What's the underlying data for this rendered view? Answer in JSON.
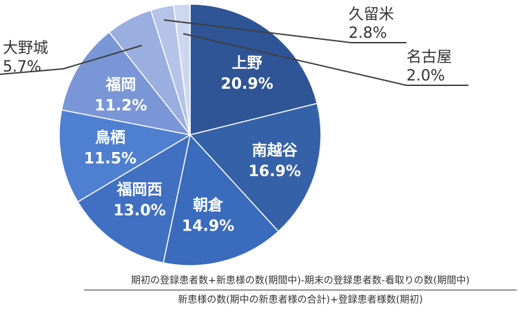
{
  "chart_data": {
    "type": "pie",
    "title": "",
    "start_angle_deg": 0,
    "direction": "clockwise",
    "slices": [
      {
        "name": "上野",
        "value": 20.9,
        "value_label": "20.9%",
        "color": "#2f5597",
        "label_position": "inside"
      },
      {
        "name": "南越谷",
        "value": 16.9,
        "value_label": "16.9%",
        "color": "#3561a8",
        "label_position": "inside"
      },
      {
        "name": "朝倉",
        "value": 14.9,
        "value_label": "14.9%",
        "color": "#3a6bbd",
        "label_position": "inside"
      },
      {
        "name": "福岡西",
        "value": 13.0,
        "value_label": "13.0%",
        "color": "#4170c2",
        "label_position": "inside"
      },
      {
        "name": "鳥栖",
        "value": 11.5,
        "value_label": "11.5%",
        "color": "#4f7fd0",
        "label_position": "inside"
      },
      {
        "name": "福岡",
        "value": 11.2,
        "value_label": "11.2%",
        "color": "#7a96d6",
        "label_position": "inside"
      },
      {
        "name": "大野城",
        "value": 5.7,
        "value_label": "5.7%",
        "color": "#9aaedf",
        "label_position": "outside"
      },
      {
        "name": "久留米",
        "value": 2.8,
        "value_label": "2.8%",
        "color": "#b4c3e7",
        "label_position": "outside"
      },
      {
        "name": "名古屋",
        "value": 2.0,
        "value_label": "2.0%",
        "color": "#cdd8f0",
        "label_position": "outside"
      }
    ]
  },
  "formula": {
    "numerator": "期初の登録患者数+新患様の数(期間中)-期末の登録患者数-看取りの数(期間中)",
    "denominator": "新患様の数(期中の新患者様の合計)+登録患者様数(期初)"
  }
}
